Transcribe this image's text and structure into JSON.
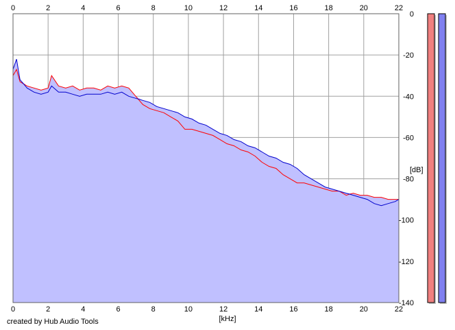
{
  "credit": "created by Hub Audio Tools",
  "chart_data": {
    "type": "line",
    "xlabel": "[kHz]",
    "ylabel": "[dB]",
    "xlim": [
      0,
      22
    ],
    "ylim": [
      -140,
      0
    ],
    "x_ticks": [
      0,
      2,
      4,
      6,
      8,
      10,
      12,
      14,
      16,
      18,
      20,
      22
    ],
    "x_tick_labels": [
      "0",
      "2",
      "4",
      "6",
      "8",
      "10",
      "12",
      "14",
      "16",
      "18",
      "20",
      "22"
    ],
    "y_ticks": [
      0,
      -20,
      -40,
      -60,
      -80,
      -100,
      -120,
      -140
    ],
    "y_tick_labels": [
      "0",
      "-20",
      "-40",
      "-60",
      "-80",
      "-100",
      "-120",
      "-140"
    ],
    "grid": true,
    "x_ticks_top": true,
    "y_axis_side": "right",
    "fill_color": "#c0c0ff",
    "series": [
      {
        "color": "#ff0000",
        "x": [
          0,
          0.2,
          0.4,
          0.8,
          1.2,
          1.6,
          2.0,
          2.2,
          2.6,
          3.0,
          3.4,
          3.8,
          4.2,
          4.6,
          5.0,
          5.4,
          5.8,
          6.2,
          6.6,
          7.0,
          7.4,
          7.8,
          8.2,
          8.6,
          9.0,
          9.4,
          9.8,
          10.2,
          10.6,
          11.0,
          11.4,
          11.8,
          12.2,
          12.6,
          13.0,
          13.4,
          13.8,
          14.2,
          14.6,
          15.0,
          15.4,
          15.8,
          16.2,
          16.6,
          17.0,
          17.4,
          17.8,
          18.2,
          18.6,
          19.0,
          19.4,
          19.8,
          20.2,
          20.6,
          21.0,
          21.4,
          21.8,
          22.0
        ],
        "y": [
          -30,
          -27,
          -33,
          -35,
          -36,
          -37,
          -36,
          -30,
          -35,
          -36,
          -35,
          -37,
          -36,
          -36,
          -37,
          -35,
          -36,
          -35,
          -36,
          -40,
          -44,
          -46,
          -47,
          -48,
          -50,
          -52,
          -56,
          -56,
          -57,
          -58,
          -59,
          -61,
          -63,
          -64,
          -66,
          -67,
          -69,
          -72,
          -74,
          -75,
          -78,
          -80,
          -82,
          -82,
          -83,
          -84,
          -85,
          -86,
          -86,
          -88,
          -87,
          -88,
          -88,
          -89,
          -89,
          -90,
          -90,
          -90
        ]
      },
      {
        "color": "#0000cc",
        "x": [
          0,
          0.2,
          0.4,
          0.8,
          1.2,
          1.6,
          2.0,
          2.2,
          2.6,
          3.0,
          3.4,
          3.8,
          4.2,
          4.6,
          5.0,
          5.4,
          5.8,
          6.2,
          6.6,
          7.0,
          7.4,
          7.8,
          8.2,
          8.6,
          9.0,
          9.4,
          9.8,
          10.2,
          10.6,
          11.0,
          11.4,
          11.8,
          12.2,
          12.6,
          13.0,
          13.4,
          13.8,
          14.2,
          14.6,
          15.0,
          15.4,
          15.8,
          16.2,
          16.6,
          17.0,
          17.4,
          17.8,
          18.2,
          18.6,
          19.0,
          19.4,
          19.8,
          20.2,
          20.6,
          21.0,
          21.4,
          21.8,
          22.0
        ],
        "y": [
          -27,
          -22,
          -32,
          -36,
          -38,
          -39,
          -38,
          -35,
          -38,
          -38,
          -39,
          -40,
          -39,
          -39,
          -39,
          -38,
          -39,
          -38,
          -40,
          -41,
          -42,
          -43,
          -45,
          -46,
          -47,
          -48,
          -50,
          -51,
          -53,
          -54,
          -56,
          -58,
          -59,
          -61,
          -62,
          -64,
          -65,
          -67,
          -69,
          -70,
          -72,
          -73,
          -75,
          -78,
          -80,
          -82,
          -84,
          -85,
          -86,
          -87,
          -88,
          -89,
          -90,
          -92,
          -93,
          -92,
          -91,
          -90
        ]
      }
    ]
  },
  "level_meters": [
    {
      "color": "#f08080",
      "level": 1.0
    },
    {
      "color": "#8080f0",
      "level": 1.0
    }
  ]
}
